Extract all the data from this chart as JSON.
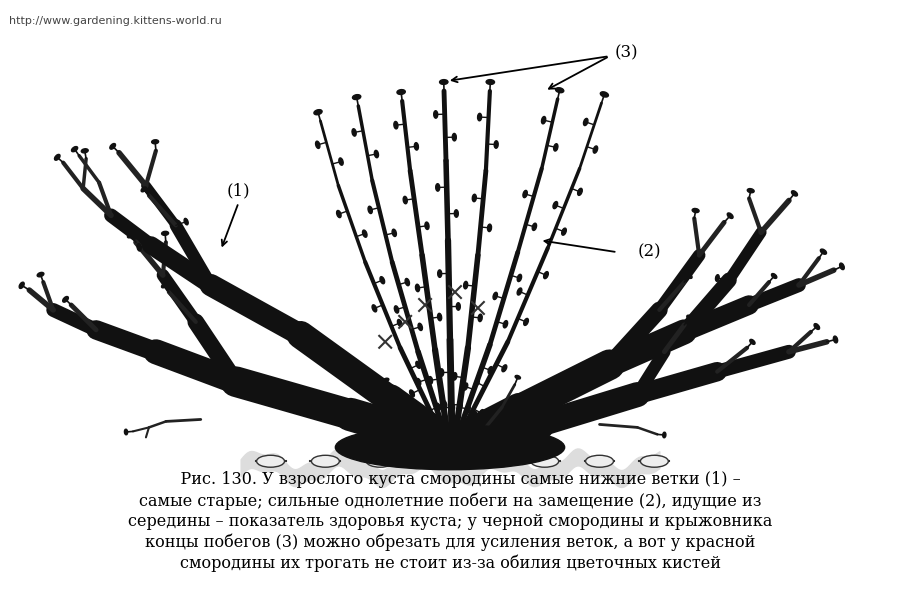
{
  "background_color": "#ffffff",
  "url_text": "http://www.gardening.kittens-world.ru",
  "url_fontsize": 8,
  "caption_lines": [
    "    Рис. 130. У взрослого куста смородины самые нижние ветки (1) –",
    "самые старые; сильные однолетние побеги на замещение (2), идущие из",
    "середины – показатель здоровья куста; у черной смородины и крыжовника",
    "концы побегов (3) можно обрезать для усиления веток, а вот у красной",
    "смородины их трогать не стоит из-за обилия цветочных кистей"
  ],
  "caption_fontsize": 11.5,
  "label1": "(1)",
  "label2": "(2)",
  "label3": "(3)",
  "label_fontsize": 12,
  "fig_width": 9.0,
  "fig_height": 6.0,
  "dpi": 100
}
